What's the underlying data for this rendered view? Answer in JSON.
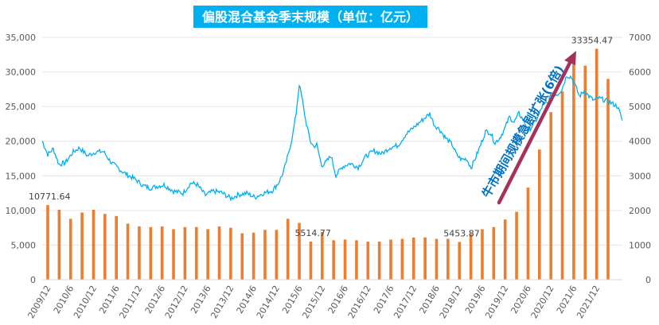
{
  "chart_data": {
    "type": "bar",
    "title": "偏股混合基金季末规模（单位：亿元）",
    "left_axis": {
      "ylim": [
        0,
        35000
      ],
      "ticks": [
        0,
        5000,
        10000,
        15000,
        20000,
        25000,
        30000,
        35000
      ],
      "tick_labels": [
        "0",
        "5,000",
        "10,000",
        "15,000",
        "20,000",
        "25,000",
        "30,000",
        "35,000"
      ]
    },
    "right_axis": {
      "ylim": [
        0,
        7000
      ],
      "ticks": [
        0,
        1000,
        2000,
        3000,
        4000,
        5000,
        6000,
        7000
      ],
      "tick_labels": [
        "0",
        "1000",
        "2000",
        "3000",
        "4000",
        "5000",
        "6000",
        "7000"
      ]
    },
    "x_tick_labels": [
      "2009/12",
      "2010/6",
      "2010/12",
      "2011/6",
      "2011/12",
      "2012/6",
      "2012/12",
      "2013/6",
      "2013/12",
      "2014/6",
      "2014/12",
      "2015/6",
      "2015/12",
      "2016/6",
      "2016/12",
      "2017/6",
      "2017/12",
      "2018/6",
      "2018/12",
      "2019/6",
      "2019/12",
      "2020/6",
      "2020/12",
      "2021/6",
      "2021/12"
    ],
    "bar_series": {
      "color": "#ED7D31",
      "categories": [
        "2009/12",
        "2010/3",
        "2010/6",
        "2010/9",
        "2010/12",
        "2011/3",
        "2011/6",
        "2011/9",
        "2011/12",
        "2012/3",
        "2012/6",
        "2012/9",
        "2012/12",
        "2013/3",
        "2013/6",
        "2013/9",
        "2013/12",
        "2014/3",
        "2014/6",
        "2014/9",
        "2014/12",
        "2015/3",
        "2015/6",
        "2015/9",
        "2015/12",
        "2016/3",
        "2016/6",
        "2016/9",
        "2016/12",
        "2017/3",
        "2017/6",
        "2017/9",
        "2017/12",
        "2018/3",
        "2018/6",
        "2018/9",
        "2018/12",
        "2019/3",
        "2019/6",
        "2019/9",
        "2019/12",
        "2020/3",
        "2020/6",
        "2020/9",
        "2020/12",
        "2021/3",
        "2021/6",
        "2021/9",
        "2021/12",
        "2022/3"
      ],
      "values": [
        10771.64,
        10100,
        8800,
        9700,
        10100,
        9500,
        9200,
        8100,
        7700,
        7600,
        7700,
        7300,
        7600,
        7600,
        7300,
        7700,
        7500,
        6700,
        6800,
        7200,
        7200,
        8800,
        8200,
        5514.77,
        6900,
        5700,
        5800,
        5700,
        5500,
        5500,
        5800,
        5900,
        6100,
        6100,
        5900,
        5900,
        5453.87,
        6600,
        7300,
        7600,
        8700,
        9800,
        13300,
        18800,
        24200,
        27200,
        32300,
        30900,
        33354.47,
        29000
      ]
    },
    "line_series": {
      "color": "#00B0F0",
      "axis": "right"
    },
    "data_labels": [
      "10771.64",
      "5514.77",
      "5453.87",
      "33354.47"
    ],
    "annotation": {
      "text": "牛市期间规模急剧扩张(6倍)",
      "color": "#0070C0",
      "arrow_color": "#A5325C"
    },
    "title_bg": "#00B0F0"
  }
}
